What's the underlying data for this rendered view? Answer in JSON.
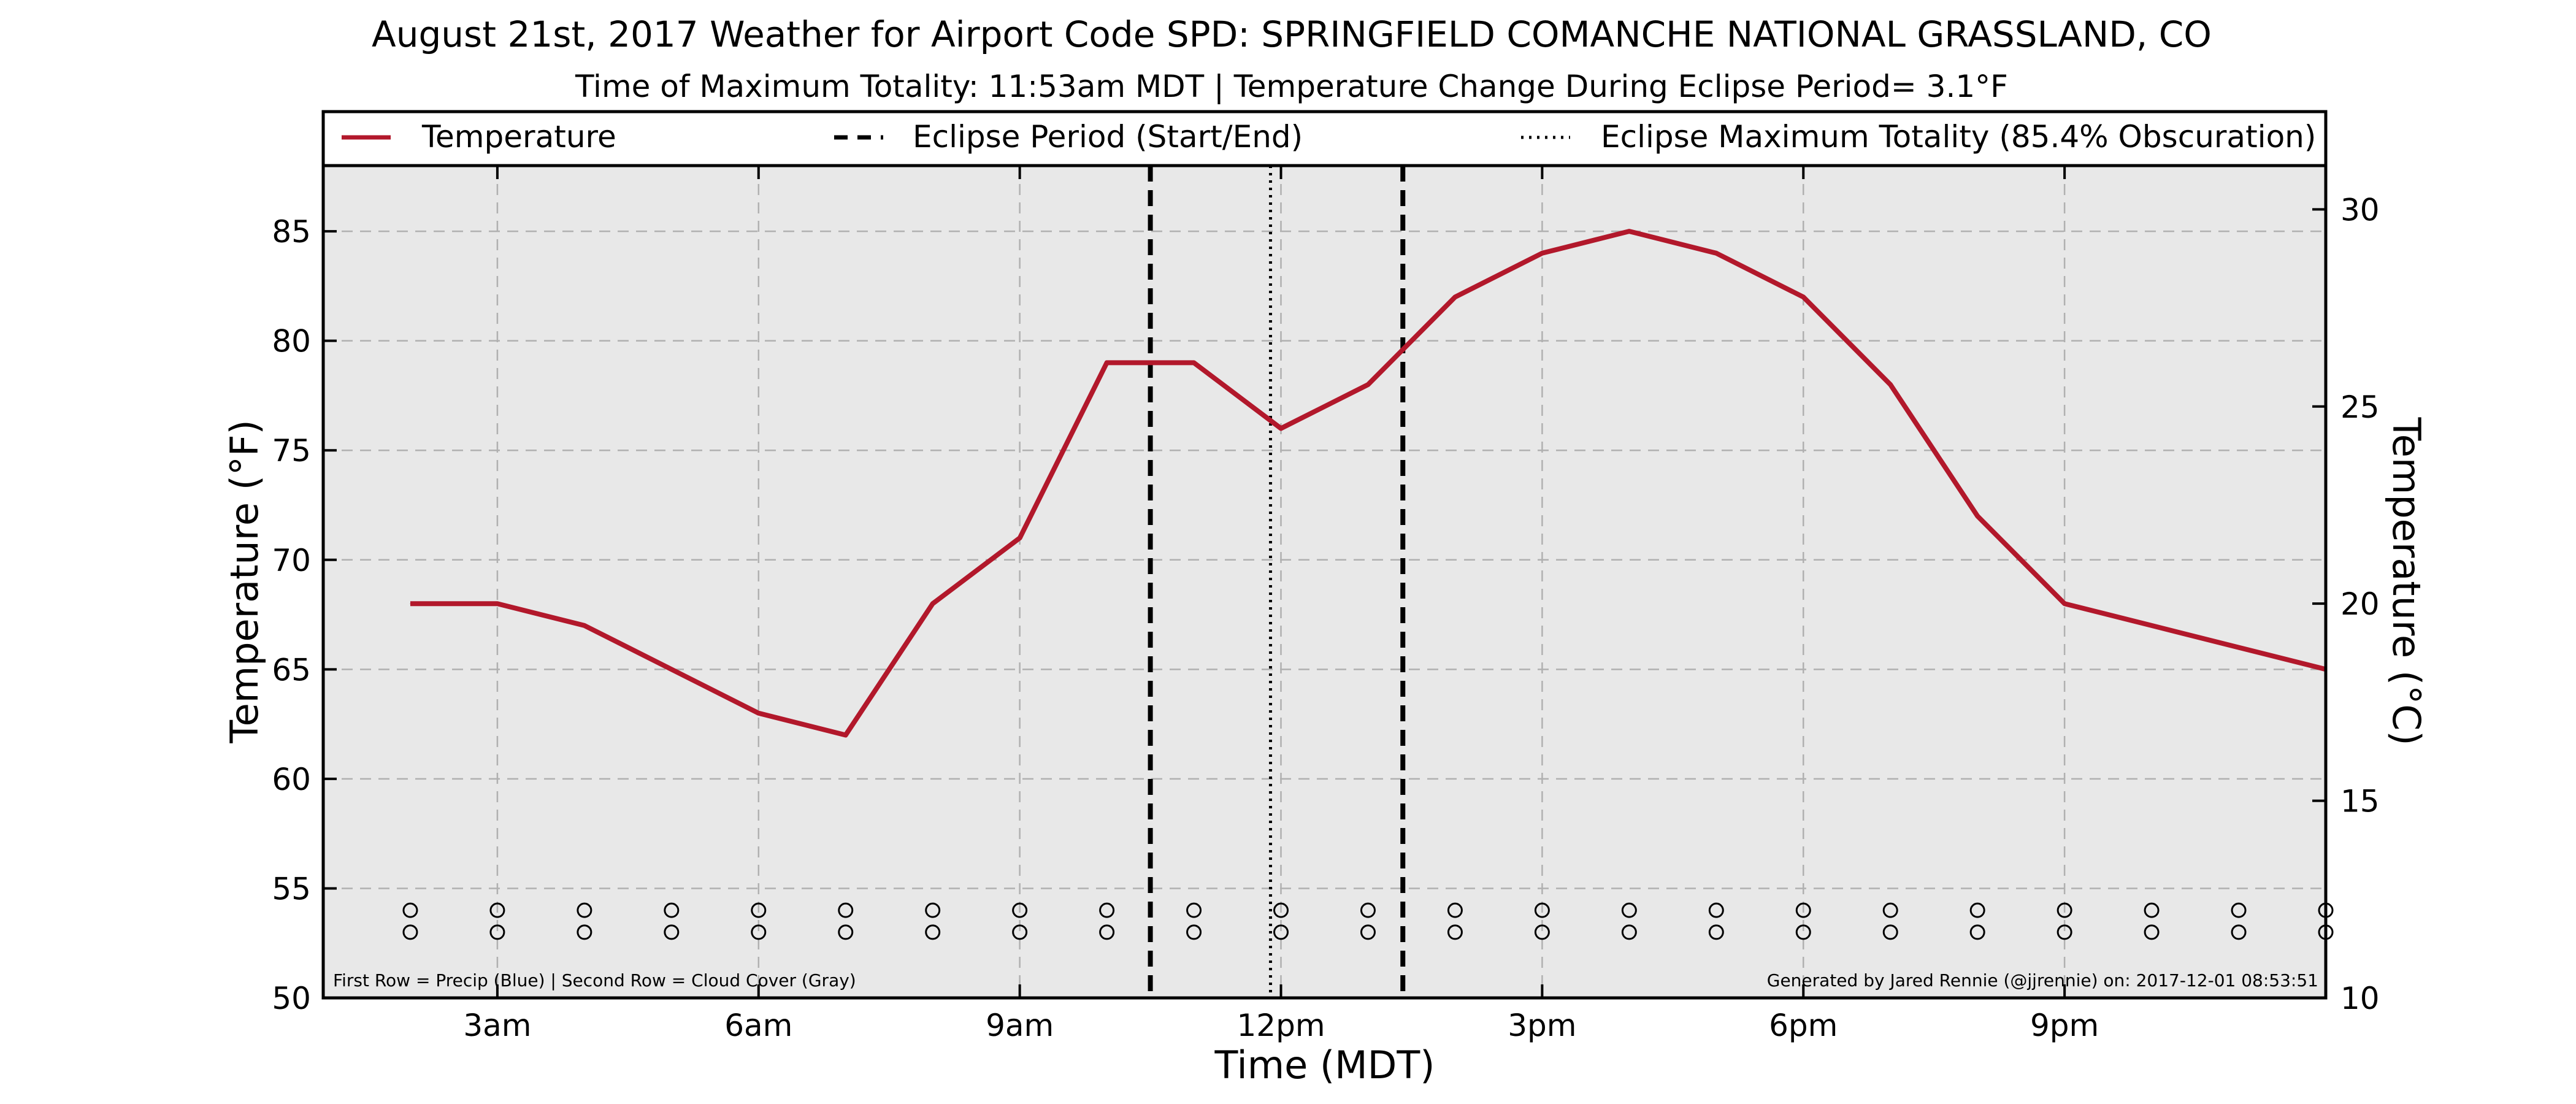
{
  "chart_data": {
    "type": "line",
    "title": "August 21st, 2017 Weather for Airport Code SPD: SPRINGFIELD COMANCHE NATIONAL GRASSLAND, CO",
    "subtitle": "Time of Maximum Totality: 11:53am MDT | Temperature Change During Eclipse Period= 3.1°F",
    "xlabel": "Time (MDT)",
    "ylabel": "Temperature (°F)",
    "ylabel_right": "Temperature (°C)",
    "xlim": [
      1,
      24
    ],
    "ylim": [
      50,
      88
    ],
    "ylim_right_c": [
      10,
      31.11
    ],
    "x_ticks": [
      {
        "x": 3,
        "label": "3am"
      },
      {
        "x": 6,
        "label": "6am"
      },
      {
        "x": 9,
        "label": "9am"
      },
      {
        "x": 12,
        "label": "12pm"
      },
      {
        "x": 15,
        "label": "3pm"
      },
      {
        "x": 18,
        "label": "6pm"
      },
      {
        "x": 21,
        "label": "9pm"
      }
    ],
    "y_ticks": [
      50,
      55,
      60,
      65,
      70,
      75,
      80,
      85
    ],
    "y_ticks_right": [
      10,
      15,
      20,
      25,
      30
    ],
    "grid": true,
    "legend_position": "top",
    "legend": [
      {
        "label": "Temperature",
        "style": "solid",
        "color": "#b2182b"
      },
      {
        "label": "Eclipse Period (Start/End)",
        "style": "dashed",
        "color": "#000000"
      },
      {
        "label": "Eclipse Maximum Totality (85.4% Obscuration)",
        "style": "dotted",
        "color": "#000000"
      }
    ],
    "series": [
      {
        "name": "Temperature",
        "color": "#b2182b",
        "x": [
          2,
          3,
          4,
          5,
          6,
          7,
          8,
          9,
          10,
          11,
          12,
          13,
          14,
          15,
          16,
          17,
          18,
          19,
          20,
          21,
          22,
          23,
          24
        ],
        "values": [
          68,
          68,
          67,
          65,
          63,
          62,
          68,
          71,
          79,
          79,
          76,
          78,
          82,
          84,
          85,
          84,
          82,
          78,
          72,
          68,
          67,
          66,
          65
        ]
      }
    ],
    "eclipse_start": 10.5,
    "eclipse_end": 13.4,
    "max_totality": 11.88,
    "marker_rows": {
      "x": [
        2,
        3,
        4,
        5,
        6,
        7,
        8,
        9,
        10,
        11,
        12,
        13,
        14,
        15,
        16,
        17,
        18,
        19,
        20,
        21,
        22,
        23,
        24
      ],
      "precip_y": 54,
      "cloud_y": 53
    },
    "footnote_left": "First Row = Precip (Blue) | Second Row = Cloud Cover (Gray)",
    "footnote_right": "Generated by Jared Rennie (@jjrennie) on: 2017-12-01 08:53:51",
    "colors": {
      "plot_background": "#e8e8e8",
      "temperature_line": "#b2182b",
      "grid": "#b0b0b0"
    }
  }
}
